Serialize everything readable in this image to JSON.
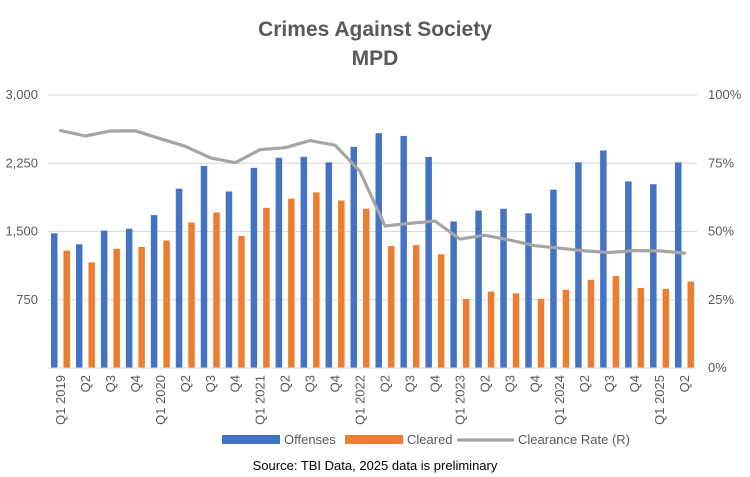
{
  "chart_data": {
    "type": "bar",
    "title": "Crimes Against Society",
    "subtitle": "MPD",
    "source_note": "Source: TBI Data, 2025 data is preliminary",
    "categories": [
      "Q1 2019",
      "Q2",
      "Q3",
      "Q4",
      "Q1 2020",
      "Q2",
      "Q3",
      "Q4",
      "Q1 2021",
      "Q2",
      "Q3",
      "Q4",
      "Q1 2022",
      "Q2",
      "Q3",
      "Q4",
      "Q1 2023",
      "Q2",
      "Q3",
      "Q4",
      "Q1 2024",
      "Q2",
      "Q3",
      "Q4",
      "Q1 2025",
      "Q2"
    ],
    "series": [
      {
        "name": "Offenses",
        "type": "bar",
        "axis": "left",
        "color": "#4472C4",
        "values": [
          1480,
          1360,
          1510,
          1530,
          1680,
          1970,
          2220,
          1940,
          2200,
          2310,
          2320,
          2260,
          2430,
          2580,
          2550,
          2320,
          1610,
          1730,
          1750,
          1700,
          1960,
          2260,
          2390,
          2050,
          2020,
          2260
        ]
      },
      {
        "name": "Cleared",
        "type": "bar",
        "axis": "left",
        "color": "#ED7D31",
        "values": [
          1290,
          1160,
          1310,
          1330,
          1400,
          1600,
          1710,
          1450,
          1760,
          1860,
          1930,
          1840,
          1750,
          1340,
          1350,
          1250,
          760,
          840,
          820,
          760,
          860,
          970,
          1010,
          880,
          870,
          950
        ]
      },
      {
        "name": "Clearance Rate (R)",
        "type": "line",
        "axis": "right",
        "color": "#A5A5A5",
        "values": [
          87,
          85,
          86.8,
          86.9,
          84,
          81.2,
          77,
          75.2,
          80,
          80.7,
          83.3,
          81.6,
          72,
          52,
          53,
          53.8,
          47.2,
          48.6,
          46.9,
          44.8,
          43.9,
          42.9,
          42.3,
          43,
          42.9,
          42.1
        ]
      }
    ],
    "y_left": {
      "ylim": [
        0,
        3000
      ],
      "ticks": [
        0,
        750,
        1500,
        2250,
        3000
      ],
      "tick_labels": [
        "",
        "750",
        "1,500",
        "2,250",
        "3,000"
      ]
    },
    "y_right": {
      "ylim": [
        0,
        100
      ],
      "ticks": [
        0,
        25,
        50,
        75,
        100
      ],
      "tick_labels": [
        "0%",
        "25%",
        "50%",
        "75%",
        "100%"
      ]
    },
    "grid": true,
    "legend": "bottom"
  }
}
